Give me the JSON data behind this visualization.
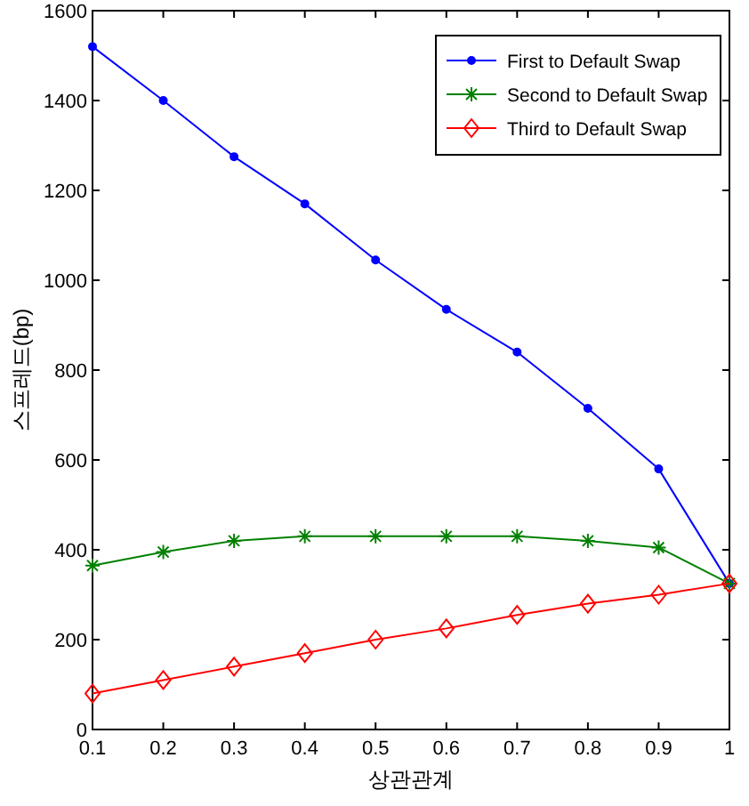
{
  "chart_data": {
    "type": "line",
    "xlabel": "상관관계",
    "ylabel": "스프레드(bp)",
    "x": [
      0.1,
      0.2,
      0.3,
      0.4,
      0.5,
      0.6,
      0.7,
      0.8,
      0.9,
      1
    ],
    "xlim": [
      0.1,
      1
    ],
    "xticks": [
      0.1,
      0.2,
      0.3,
      0.4,
      0.5,
      0.6,
      0.7,
      0.8,
      0.9,
      1
    ],
    "ylim": [
      0,
      1600
    ],
    "yticks": [
      0,
      200,
      400,
      600,
      800,
      1000,
      1200,
      1400,
      1600
    ],
    "legend": "top right",
    "grid": false,
    "line_style": "solid",
    "series": [
      {
        "name": "First to Default Swap",
        "color": "#0000ff",
        "marker": "circle",
        "values": [
          1520,
          1400,
          1275,
          1170,
          1045,
          935,
          840,
          715,
          580,
          325
        ]
      },
      {
        "name": "Second to Default Swap",
        "color": "#008000",
        "marker": "cross",
        "values": [
          365,
          395,
          420,
          430,
          430,
          430,
          430,
          420,
          405,
          325
        ]
      },
      {
        "name": "Third to Default Swap",
        "color": "#ff0000",
        "marker": "diamond",
        "values": [
          80,
          110,
          140,
          170,
          200,
          225,
          255,
          280,
          300,
          325
        ]
      }
    ]
  }
}
